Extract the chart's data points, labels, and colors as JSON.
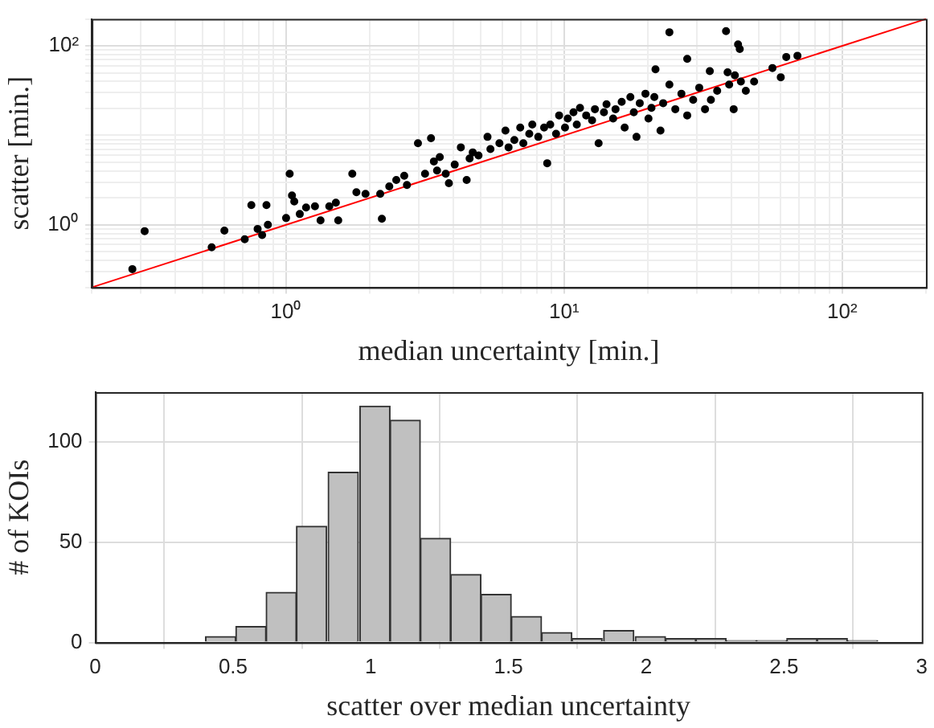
{
  "chart_data": [
    {
      "type": "scatter",
      "xlabel": "median uncertainty [min.]",
      "ylabel": "scatter [min.]",
      "log": "xy",
      "grid": true,
      "xlim": [
        0.2,
        200
      ],
      "ylim": [
        0.2,
        200
      ],
      "xticks": [
        {
          "value": 0.2,
          "label": null
        },
        {
          "value": 0.3,
          "label": null
        },
        {
          "value": 0.4,
          "label": null
        },
        {
          "value": 0.5,
          "label": null
        },
        {
          "value": 0.6,
          "label": null
        },
        {
          "value": 0.7,
          "label": null
        },
        {
          "value": 0.8,
          "label": null
        },
        {
          "value": 0.9,
          "label": null
        },
        {
          "value": 1,
          "label": "10⁰"
        },
        {
          "value": 2,
          "label": null
        },
        {
          "value": 3,
          "label": null
        },
        {
          "value": 4,
          "label": null
        },
        {
          "value": 5,
          "label": null
        },
        {
          "value": 6,
          "label": null
        },
        {
          "value": 7,
          "label": null
        },
        {
          "value": 8,
          "label": null
        },
        {
          "value": 9,
          "label": null
        },
        {
          "value": 10,
          "label": "10¹"
        },
        {
          "value": 20,
          "label": null
        },
        {
          "value": 30,
          "label": null
        },
        {
          "value": 40,
          "label": null
        },
        {
          "value": 50,
          "label": null
        },
        {
          "value": 60,
          "label": null
        },
        {
          "value": 70,
          "label": null
        },
        {
          "value": 80,
          "label": null
        },
        {
          "value": 90,
          "label": null
        },
        {
          "value": 100,
          "label": "10²"
        },
        {
          "value": 200,
          "label": null
        }
      ],
      "yticks": [
        {
          "value": 0.2,
          "label": null
        },
        {
          "value": 0.3,
          "label": null
        },
        {
          "value": 0.4,
          "label": null
        },
        {
          "value": 0.5,
          "label": null
        },
        {
          "value": 0.6,
          "label": null
        },
        {
          "value": 0.7,
          "label": null
        },
        {
          "value": 0.8,
          "label": null
        },
        {
          "value": 0.9,
          "label": null
        },
        {
          "value": 1,
          "label": "10⁰"
        },
        {
          "value": 2,
          "label": null
        },
        {
          "value": 3,
          "label": null
        },
        {
          "value": 4,
          "label": null
        },
        {
          "value": 5,
          "label": null
        },
        {
          "value": 6,
          "label": null
        },
        {
          "value": 7,
          "label": null
        },
        {
          "value": 8,
          "label": null
        },
        {
          "value": 9,
          "label": null
        },
        {
          "value": 10,
          "label": null
        },
        {
          "value": 20,
          "label": null
        },
        {
          "value": 30,
          "label": null
        },
        {
          "value": 40,
          "label": null
        },
        {
          "value": 50,
          "label": null
        },
        {
          "value": 60,
          "label": null
        },
        {
          "value": 70,
          "label": null
        },
        {
          "value": 80,
          "label": null
        },
        {
          "value": 90,
          "label": null
        },
        {
          "value": 100,
          "label": "10²"
        },
        {
          "value": 200,
          "label": null
        }
      ],
      "series": [
        {
          "type": "scatter",
          "color": "#000000",
          "x": [
            0.28,
            0.31,
            0.54,
            0.6,
            0.71,
            0.75,
            0.79,
            0.82,
            0.85,
            0.86,
            1.0,
            1.03,
            1.05,
            1.07,
            1.12,
            1.18,
            1.27,
            1.33,
            1.43,
            1.51,
            1.54,
            1.73,
            1.79,
            1.93,
            2.18,
            2.21,
            2.35,
            2.49,
            2.66,
            2.72,
            2.98,
            3.16,
            3.32,
            3.4,
            3.49,
            3.57,
            3.75,
            3.85,
            4.04,
            4.25,
            4.46,
            4.57,
            4.69,
            4.92,
            5.3,
            5.43,
            5.85,
            6.15,
            6.31,
            6.62,
            6.95,
            7.13,
            7.49,
            7.68,
            8.07,
            8.47,
            8.69,
            8.91,
            9.35,
            9.59,
            10.07,
            10.3,
            10.8,
            11.1,
            11.4,
            12.0,
            12.6,
            12.9,
            13.3,
            13.9,
            14.2,
            15.0,
            15.3,
            16.1,
            16.5,
            17.3,
            17.8,
            18.2,
            18.7,
            19.6,
            20.1,
            20.6,
            21.1,
            21.3,
            22.2,
            22.7,
            23.9,
            23.9,
            25.1,
            26.4,
            27.7,
            27.7,
            29.1,
            30.6,
            32.1,
            33.4,
            33.7,
            35.5,
            38.2,
            38.7,
            39.2,
            40.7,
            41.1,
            42.2,
            42.8,
            43.2,
            45.0,
            48.2,
            56.1,
            60.1,
            62.9,
            69.0
          ],
          "values": [
            0.32,
            0.85,
            0.56,
            0.86,
            0.69,
            1.66,
            0.9,
            0.77,
            1.66,
            1.0,
            1.19,
            3.72,
            2.13,
            1.82,
            1.32,
            1.56,
            1.61,
            1.12,
            1.61,
            1.77,
            1.12,
            3.72,
            2.31,
            2.22,
            2.22,
            1.17,
            2.69,
            3.17,
            3.53,
            2.79,
            8.18,
            3.72,
            9.3,
            5.11,
            4.04,
            5.71,
            3.72,
            2.92,
            4.71,
            7.34,
            3.17,
            5.52,
            6.45,
            5.95,
            9.61,
            7.02,
            8.18,
            11.3,
            7.34,
            8.88,
            12.2,
            8.18,
            10.4,
            13.2,
            9.61,
            12.2,
            4.88,
            13.2,
            10.4,
            16.7,
            12.2,
            15.4,
            18.1,
            13.2,
            20.3,
            16.7,
            14.7,
            19.6,
            8.18,
            18.1,
            22.3,
            15.4,
            19.6,
            23.7,
            12.2,
            26.8,
            18.1,
            9.61,
            22.9,
            29.2,
            15.4,
            20.3,
            26.8,
            54.8,
            11.3,
            22.9,
            37.0,
            142,
            19.6,
            29.2,
            71.7,
            16.7,
            24.9,
            34.1,
            19.6,
            52.3,
            24.9,
            31.5,
            146,
            50.6,
            37.0,
            19.6,
            46.8,
            104,
            92.4,
            39.9,
            31.5,
            39.9,
            56.6,
            44.6,
            75.2,
            77.6
          ]
        },
        {
          "type": "line",
          "color": "#ff0000",
          "x": [
            0.2,
            200
          ],
          "values": [
            0.2,
            200
          ]
        }
      ]
    },
    {
      "type": "histogram",
      "xlabel": "scatter over median uncertainty",
      "ylabel": "# of KOIs",
      "grid": true,
      "color": "#c0c0c0",
      "xlim": [
        0,
        3
      ],
      "ylim": [
        0,
        125
      ],
      "xticks": [
        0,
        0.5,
        1,
        1.5,
        2,
        2.5,
        3
      ],
      "yticks": [
        0,
        50,
        100
      ],
      "bins": [
        0.4,
        0.51,
        0.62,
        0.73,
        0.84,
        0.96,
        1.07,
        1.18,
        1.29,
        1.4,
        1.51,
        1.62,
        1.73,
        1.84,
        1.96,
        2.07,
        2.18,
        2.29,
        2.4,
        2.51,
        2.62,
        2.73,
        2.84,
        2.96
      ],
      "values": [
        3,
        8,
        25,
        58,
        85,
        118,
        111,
        52,
        34,
        24,
        13,
        5,
        2,
        6,
        3,
        2,
        2,
        1,
        1,
        2,
        2,
        1,
        0
      ]
    }
  ]
}
